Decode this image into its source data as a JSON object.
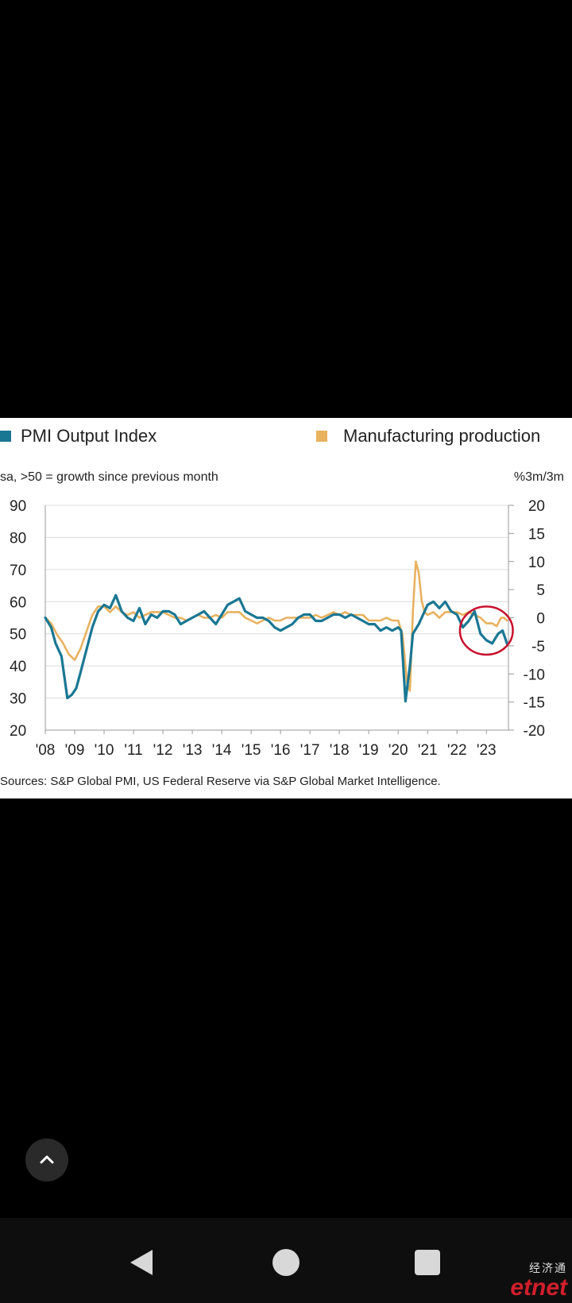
{
  "legend": {
    "pmi_label": "PMI Output Index",
    "mfg_label": "Manufacturing production"
  },
  "subtitle": "sa, >50 = growth since previous month",
  "right_unit": "%3m/3m",
  "source": "Sources: S&P Global PMI, US Federal Reserve via S&P Global Market Intelligence.",
  "colors": {
    "pmi": "#1a7793",
    "mfg": "#e8b25f",
    "highlight_circle": "#c8102e",
    "grid": "#dcdcdc"
  },
  "icons": {
    "scroll_top": "chevron-up-icon",
    "nav_back": "triangle-back-icon",
    "nav_home": "circle-home-icon",
    "nav_recents": "square-recents-icon"
  },
  "watermark": {
    "top": "经济通",
    "main": "etnet"
  },
  "chart_data": {
    "type": "line",
    "grid": "horizontal",
    "legend_position": "top",
    "x_range": [
      2008.0,
      2023.75
    ],
    "x_ticks": [
      {
        "v": 2008,
        "label": "'08"
      },
      {
        "v": 2009,
        "label": "'09"
      },
      {
        "v": 2010,
        "label": "'10"
      },
      {
        "v": 2011,
        "label": "'11"
      },
      {
        "v": 2012,
        "label": "'12"
      },
      {
        "v": 2013,
        "label": "'13"
      },
      {
        "v": 2014,
        "label": "'14"
      },
      {
        "v": 2015,
        "label": "'15"
      },
      {
        "v": 2016,
        "label": "'16"
      },
      {
        "v": 2017,
        "label": "'17"
      },
      {
        "v": 2018,
        "label": "'18"
      },
      {
        "v": 2019,
        "label": "'19"
      },
      {
        "v": 2020,
        "label": "'20"
      },
      {
        "v": 2021,
        "label": "'21"
      },
      {
        "v": 2022,
        "label": "'22"
      },
      {
        "v": 2023,
        "label": "'23"
      }
    ],
    "left_axis": {
      "ylim": [
        20,
        90
      ],
      "ticks": [
        "20",
        "30",
        "40",
        "50",
        "60",
        "70",
        "80",
        "90"
      ]
    },
    "right_axis": {
      "ylim": [
        -20,
        20
      ],
      "ticks": [
        "-20",
        "-15",
        "-10",
        "-5",
        "0",
        "5",
        "10",
        "15",
        "20"
      ]
    },
    "highlight": {
      "center_x": 2023.0,
      "center_y_left": 51,
      "rx_years": 0.9,
      "ry_left": 7.5
    },
    "series": [
      {
        "name": "PMI Output Index",
        "axis": "left",
        "points": [
          [
            2008.0,
            55
          ],
          [
            2008.2,
            52
          ],
          [
            2008.35,
            47
          ],
          [
            2008.55,
            43
          ],
          [
            2008.75,
            30
          ],
          [
            2008.9,
            31
          ],
          [
            2009.05,
            33
          ],
          [
            2009.2,
            38
          ],
          [
            2009.4,
            45
          ],
          [
            2009.6,
            52
          ],
          [
            2009.8,
            57
          ],
          [
            2010.0,
            59
          ],
          [
            2010.2,
            58
          ],
          [
            2010.4,
            62
          ],
          [
            2010.6,
            57
          ],
          [
            2010.8,
            55
          ],
          [
            2011.0,
            54
          ],
          [
            2011.2,
            58
          ],
          [
            2011.4,
            53
          ],
          [
            2011.6,
            56
          ],
          [
            2011.8,
            55
          ],
          [
            2012.0,
            57
          ],
          [
            2012.2,
            57
          ],
          [
            2012.4,
            56
          ],
          [
            2012.6,
            53
          ],
          [
            2012.8,
            54
          ],
          [
            2013.0,
            55
          ],
          [
            2013.2,
            56
          ],
          [
            2013.4,
            57
          ],
          [
            2013.6,
            55
          ],
          [
            2013.8,
            53
          ],
          [
            2014.0,
            56
          ],
          [
            2014.2,
            59
          ],
          [
            2014.4,
            60
          ],
          [
            2014.6,
            61
          ],
          [
            2014.8,
            57
          ],
          [
            2015.0,
            56
          ],
          [
            2015.2,
            55
          ],
          [
            2015.4,
            55
          ],
          [
            2015.6,
            54
          ],
          [
            2015.8,
            52
          ],
          [
            2016.0,
            51
          ],
          [
            2016.2,
            52
          ],
          [
            2016.4,
            53
          ],
          [
            2016.6,
            55
          ],
          [
            2016.8,
            56
          ],
          [
            2017.0,
            56
          ],
          [
            2017.2,
            54
          ],
          [
            2017.4,
            54
          ],
          [
            2017.6,
            55
          ],
          [
            2017.8,
            56
          ],
          [
            2018.0,
            56
          ],
          [
            2018.2,
            55
          ],
          [
            2018.4,
            56
          ],
          [
            2018.6,
            55
          ],
          [
            2018.8,
            54
          ],
          [
            2019.0,
            53
          ],
          [
            2019.2,
            53
          ],
          [
            2019.4,
            51
          ],
          [
            2019.6,
            52
          ],
          [
            2019.8,
            51
          ],
          [
            2020.0,
            52
          ],
          [
            2020.1,
            51
          ],
          [
            2020.25,
            29
          ],
          [
            2020.4,
            40
          ],
          [
            2020.5,
            50
          ],
          [
            2020.7,
            53
          ],
          [
            2020.9,
            57
          ],
          [
            2021.0,
            59
          ],
          [
            2021.2,
            60
          ],
          [
            2021.4,
            58
          ],
          [
            2021.6,
            60
          ],
          [
            2021.8,
            57
          ],
          [
            2022.0,
            56
          ],
          [
            2022.2,
            52
          ],
          [
            2022.4,
            54
          ],
          [
            2022.6,
            57
          ],
          [
            2022.8,
            50
          ],
          [
            2023.0,
            48
          ],
          [
            2023.2,
            47
          ],
          [
            2023.4,
            50
          ],
          [
            2023.55,
            51
          ],
          [
            2023.7,
            47
          ]
        ]
      },
      {
        "name": "Manufacturing production",
        "axis": "right",
        "points": [
          [
            2008.0,
            0
          ],
          [
            2008.2,
            -1
          ],
          [
            2008.4,
            -3
          ],
          [
            2008.6,
            -4.5
          ],
          [
            2008.8,
            -6.5
          ],
          [
            2009.0,
            -7.5
          ],
          [
            2009.2,
            -5.5
          ],
          [
            2009.4,
            -2.5
          ],
          [
            2009.6,
            0.5
          ],
          [
            2009.8,
            2
          ],
          [
            2010.0,
            2
          ],
          [
            2010.2,
            1
          ],
          [
            2010.4,
            2
          ],
          [
            2010.6,
            1
          ],
          [
            2010.8,
            0.5
          ],
          [
            2011.0,
            1
          ],
          [
            2011.2,
            0
          ],
          [
            2011.4,
            0.5
          ],
          [
            2011.6,
            1
          ],
          [
            2011.8,
            1
          ],
          [
            2012.0,
            1
          ],
          [
            2012.2,
            0.5
          ],
          [
            2012.4,
            0
          ],
          [
            2012.6,
            0
          ],
          [
            2012.8,
            -0.5
          ],
          [
            2013.0,
            0
          ],
          [
            2013.2,
            0.5
          ],
          [
            2013.4,
            0
          ],
          [
            2013.6,
            0
          ],
          [
            2013.8,
            0.5
          ],
          [
            2014.0,
            0
          ],
          [
            2014.2,
            1
          ],
          [
            2014.4,
            1
          ],
          [
            2014.6,
            1
          ],
          [
            2014.8,
            0
          ],
          [
            2015.0,
            -0.5
          ],
          [
            2015.2,
            -1
          ],
          [
            2015.4,
            -0.5
          ],
          [
            2015.6,
            0
          ],
          [
            2015.8,
            -0.5
          ],
          [
            2016.0,
            -0.5
          ],
          [
            2016.2,
            0
          ],
          [
            2016.4,
            0
          ],
          [
            2016.6,
            0
          ],
          [
            2016.8,
            0
          ],
          [
            2017.0,
            0
          ],
          [
            2017.2,
            0.5
          ],
          [
            2017.4,
            0
          ],
          [
            2017.6,
            0.5
          ],
          [
            2017.8,
            1
          ],
          [
            2018.0,
            0.5
          ],
          [
            2018.2,
            1
          ],
          [
            2018.4,
            0.5
          ],
          [
            2018.6,
            0.5
          ],
          [
            2018.8,
            0.5
          ],
          [
            2019.0,
            -0.5
          ],
          [
            2019.2,
            -0.5
          ],
          [
            2019.4,
            -0.5
          ],
          [
            2019.6,
            0
          ],
          [
            2019.8,
            -0.5
          ],
          [
            2020.0,
            -0.5
          ],
          [
            2020.15,
            -3
          ],
          [
            2020.3,
            -11.5
          ],
          [
            2020.4,
            -13
          ],
          [
            2020.5,
            1
          ],
          [
            2020.6,
            10
          ],
          [
            2020.7,
            8
          ],
          [
            2020.8,
            3
          ],
          [
            2020.9,
            1
          ],
          [
            2021.0,
            0.5
          ],
          [
            2021.2,
            1
          ],
          [
            2021.4,
            0
          ],
          [
            2021.6,
            1
          ],
          [
            2021.8,
            1
          ],
          [
            2022.0,
            1
          ],
          [
            2022.2,
            0.5
          ],
          [
            2022.4,
            1
          ],
          [
            2022.6,
            0.5
          ],
          [
            2022.8,
            0
          ],
          [
            2023.0,
            -1
          ],
          [
            2023.2,
            -1
          ],
          [
            2023.35,
            -1.5
          ],
          [
            2023.5,
            0
          ],
          [
            2023.6,
            0
          ],
          [
            2023.7,
            -0.5
          ]
        ]
      }
    ]
  }
}
